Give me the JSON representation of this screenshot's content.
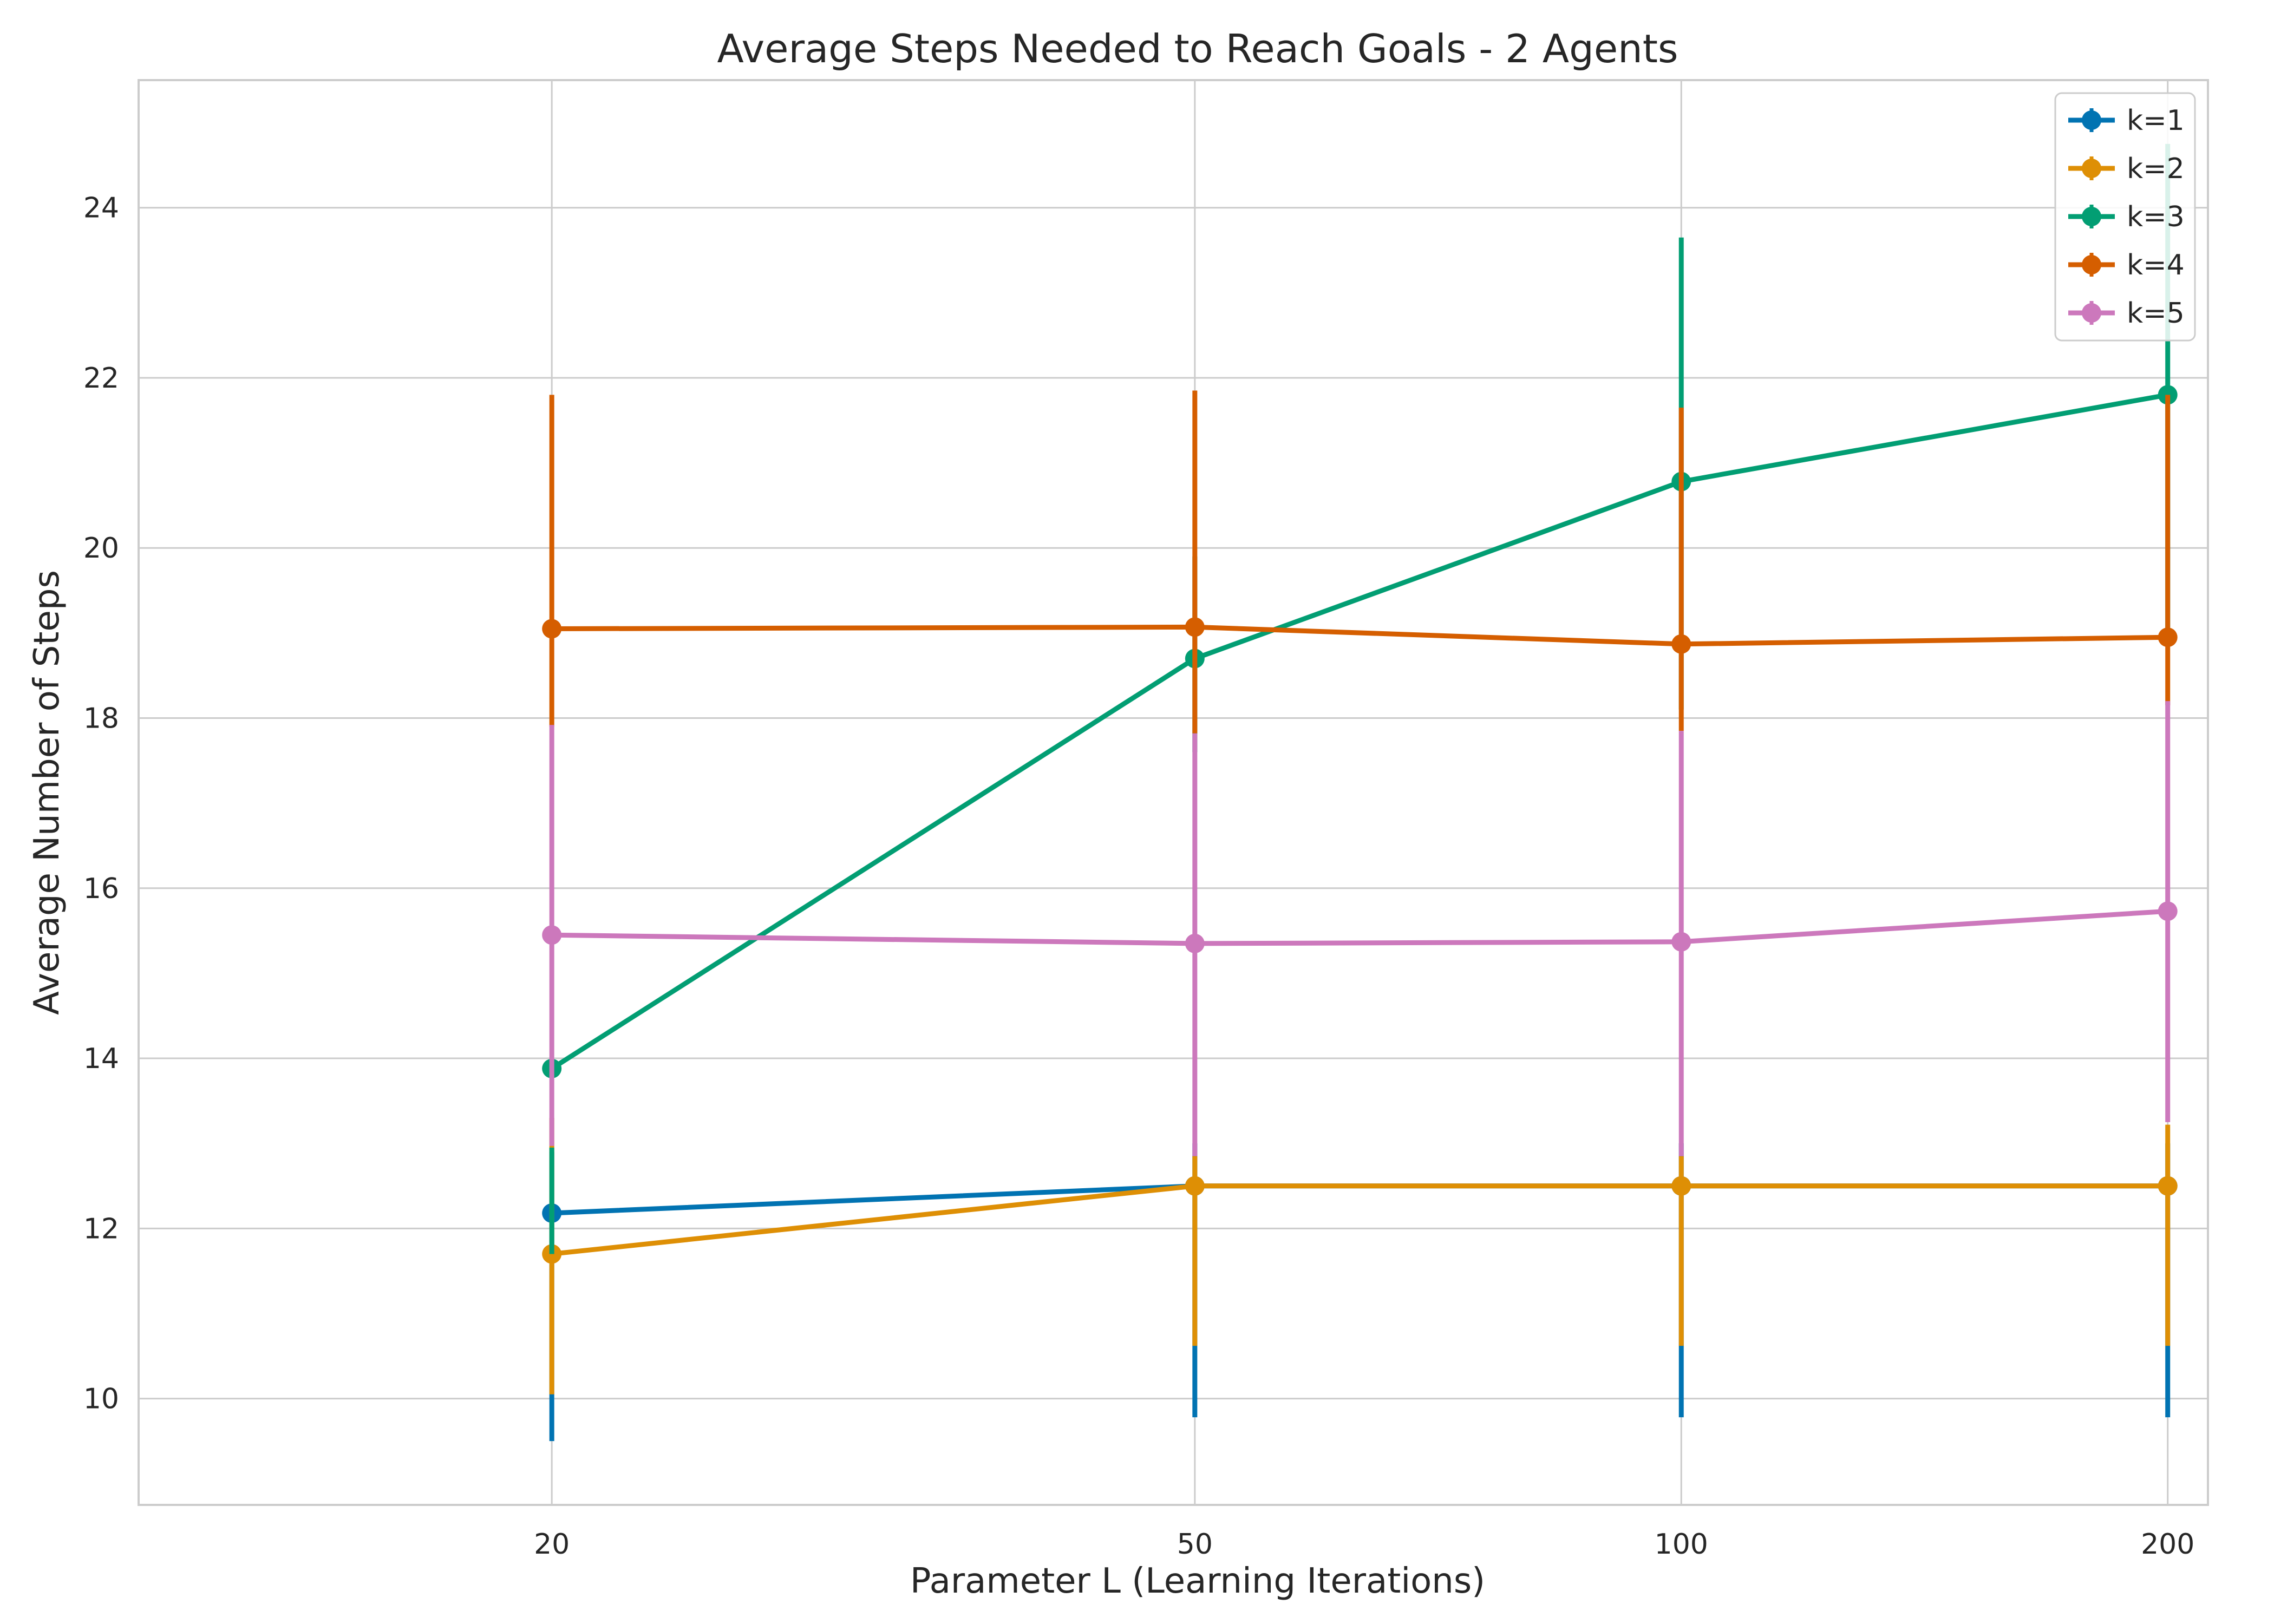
{
  "chart_data": {
    "type": "line",
    "title": "Average Steps Needed to Reach Goals - 2 Agents",
    "xlabel": "Parameter L (Learning Iterations)",
    "ylabel": "Average Number of Steps",
    "x": [
      20,
      50,
      100,
      200
    ],
    "xticks": [
      "20",
      "50",
      "100",
      "200"
    ],
    "xlim": [
      11.1,
      211.8
    ],
    "ylim": [
      8.75,
      25.5
    ],
    "yticks": [
      10,
      12,
      14,
      16,
      18,
      20,
      22,
      24
    ],
    "grid": true,
    "legend_position": "top-right",
    "series": [
      {
        "name": "k=1",
        "color": "#0173b2",
        "values": [
          12.18,
          12.5,
          12.5,
          12.5
        ],
        "err_low": [
          9.5,
          9.78,
          9.78,
          9.78
        ],
        "err_high": [
          12.9,
          13.0,
          13.0,
          13.0
        ]
      },
      {
        "name": "k=2",
        "color": "#de8f05",
        "values": [
          11.7,
          12.5,
          12.5,
          12.5
        ],
        "err_low": [
          10.05,
          10.62,
          10.62,
          10.62
        ],
        "err_high": [
          13.3,
          12.85,
          12.85,
          13.22
        ]
      },
      {
        "name": "k=3",
        "color": "#029e73",
        "values": [
          13.88,
          18.7,
          20.78,
          21.8
        ],
        "err_low": [
          11.7,
          17.6,
          18.1,
          18.9
        ],
        "err_high": [
          12.95,
          19.9,
          23.65,
          24.75
        ]
      },
      {
        "name": "k=4",
        "color": "#d55e00",
        "values": [
          19.05,
          19.07,
          18.87,
          18.95
        ],
        "err_low": [
          17.9,
          17.82,
          17.85,
          18.15
        ],
        "err_high": [
          21.8,
          21.85,
          21.65,
          21.8
        ]
      },
      {
        "name": "k=5",
        "color": "#cc78bc",
        "values": [
          15.45,
          15.35,
          15.37,
          15.73
        ],
        "err_low": [
          12.97,
          12.85,
          12.85,
          13.25
        ],
        "err_high": [
          17.92,
          17.82,
          17.85,
          18.2
        ]
      }
    ]
  }
}
